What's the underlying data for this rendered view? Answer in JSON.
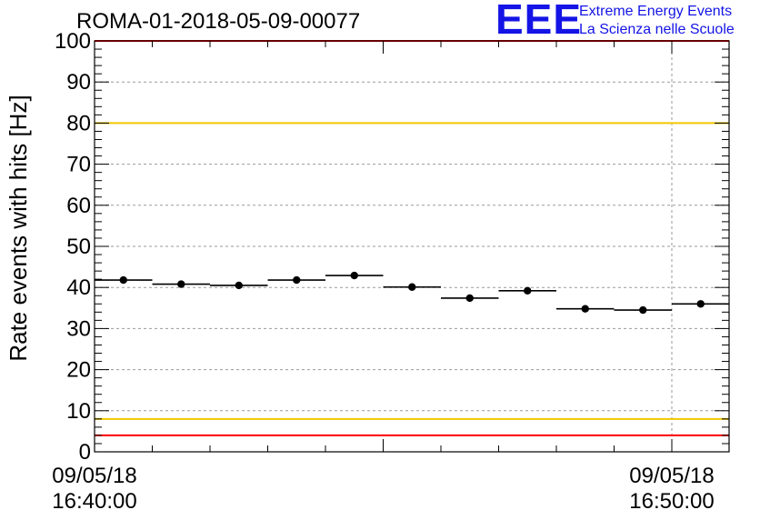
{
  "header": {
    "title": "ROMA-01-2018-05-09-00077",
    "logo_mark": "EEE",
    "logo_line1": "Extreme Energy Events",
    "logo_line2": "La Scienza nelle Scuole"
  },
  "chart_data": {
    "type": "scatter",
    "title": "ROMA-01-2018-05-09-00077",
    "ylabel": "Rate events with hits [Hz]",
    "xlabel": "",
    "ylim": [
      0,
      100
    ],
    "yticks": [
      0,
      10,
      20,
      30,
      40,
      50,
      60,
      70,
      80,
      90,
      100
    ],
    "x_tick_labels": [
      {
        "date": "09/05/18",
        "time": "16:40:00",
        "minute": 0
      },
      {
        "date": "09/05/18",
        "time": "16:50:00",
        "minute": 10
      }
    ],
    "xlim_minutes": [
      0,
      11.0
    ],
    "grid": true,
    "reference_lines": [
      {
        "value": 100,
        "color": "#ff0000"
      },
      {
        "value": 80,
        "color": "#f0c800"
      },
      {
        "value": 8,
        "color": "#f0c800"
      },
      {
        "value": 4,
        "color": "#ff0000"
      }
    ],
    "series": [
      {
        "marker_color": "#000000",
        "points": [
          {
            "x_start": 0.0,
            "x_end": 1.0,
            "y": 41.8
          },
          {
            "x_start": 1.0,
            "x_end": 2.0,
            "y": 40.8
          },
          {
            "x_start": 2.0,
            "x_end": 3.0,
            "y": 40.5
          },
          {
            "x_start": 3.0,
            "x_end": 4.0,
            "y": 41.8
          },
          {
            "x_start": 4.0,
            "x_end": 5.0,
            "y": 42.9
          },
          {
            "x_start": 5.0,
            "x_end": 6.0,
            "y": 40.1
          },
          {
            "x_start": 6.0,
            "x_end": 7.0,
            "y": 37.4
          },
          {
            "x_start": 7.0,
            "x_end": 8.0,
            "y": 39.2
          },
          {
            "x_start": 8.0,
            "x_end": 9.0,
            "y": 34.8
          },
          {
            "x_start": 9.0,
            "x_end": 10.0,
            "y": 34.5
          },
          {
            "x_start": 10.0,
            "x_end": 11.0,
            "y": 36.0
          }
        ]
      }
    ]
  }
}
